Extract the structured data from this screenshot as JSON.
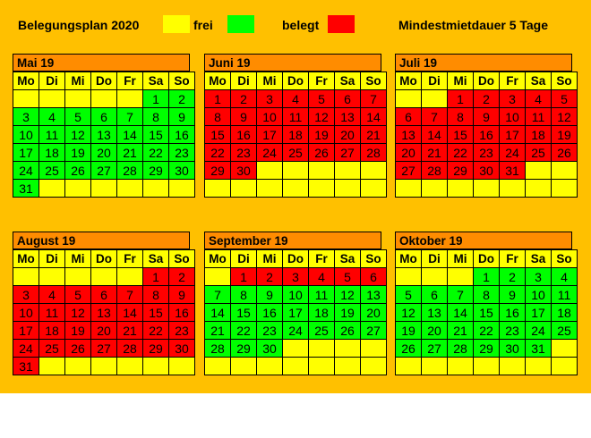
{
  "header": {
    "title": "Belegungsplan 2020",
    "free_label": "frei",
    "booked_label": "belegt",
    "min_stay": "Mindestmietdauer 5 Tage"
  },
  "colors": {
    "background": "#ffc000",
    "title_bar": "#ff8c00",
    "empty": "#ffff00",
    "free": "#00ff00",
    "booked": "#ff0000"
  },
  "weekdays": [
    "Mo",
    "Di",
    "Mi",
    "Do",
    "Fr",
    "Sa",
    "So"
  ],
  "months": [
    {
      "name": "Mai 19",
      "first_weekday": 5,
      "days": 31,
      "booked_days": []
    },
    {
      "name": "Juni 19",
      "first_weekday": 0,
      "days": 30,
      "booked_days": [
        1,
        2,
        3,
        4,
        5,
        6,
        7,
        8,
        9,
        10,
        11,
        12,
        13,
        14,
        15,
        16,
        17,
        18,
        19,
        20,
        21,
        22,
        23,
        24,
        25,
        26,
        27,
        28,
        29,
        30
      ]
    },
    {
      "name": "Juli 19",
      "first_weekday": 2,
      "days": 31,
      "booked_days": [
        1,
        2,
        3,
        4,
        5,
        6,
        7,
        8,
        9,
        10,
        11,
        12,
        13,
        14,
        15,
        16,
        17,
        18,
        19,
        20,
        21,
        22,
        23,
        24,
        25,
        26,
        27,
        28,
        29,
        30,
        31
      ]
    },
    {
      "name": "August 19",
      "first_weekday": 5,
      "days": 31,
      "booked_days": [
        1,
        2,
        3,
        4,
        5,
        6,
        7,
        8,
        9,
        10,
        11,
        12,
        13,
        14,
        15,
        16,
        17,
        18,
        19,
        20,
        21,
        22,
        23,
        24,
        25,
        26,
        27,
        28,
        29,
        30,
        31
      ]
    },
    {
      "name": "September 19",
      "first_weekday": 1,
      "days": 30,
      "booked_days": [
        1,
        2,
        3,
        4,
        5,
        6
      ]
    },
    {
      "name": "Oktober 19",
      "first_weekday": 3,
      "days": 31,
      "booked_days": []
    }
  ]
}
